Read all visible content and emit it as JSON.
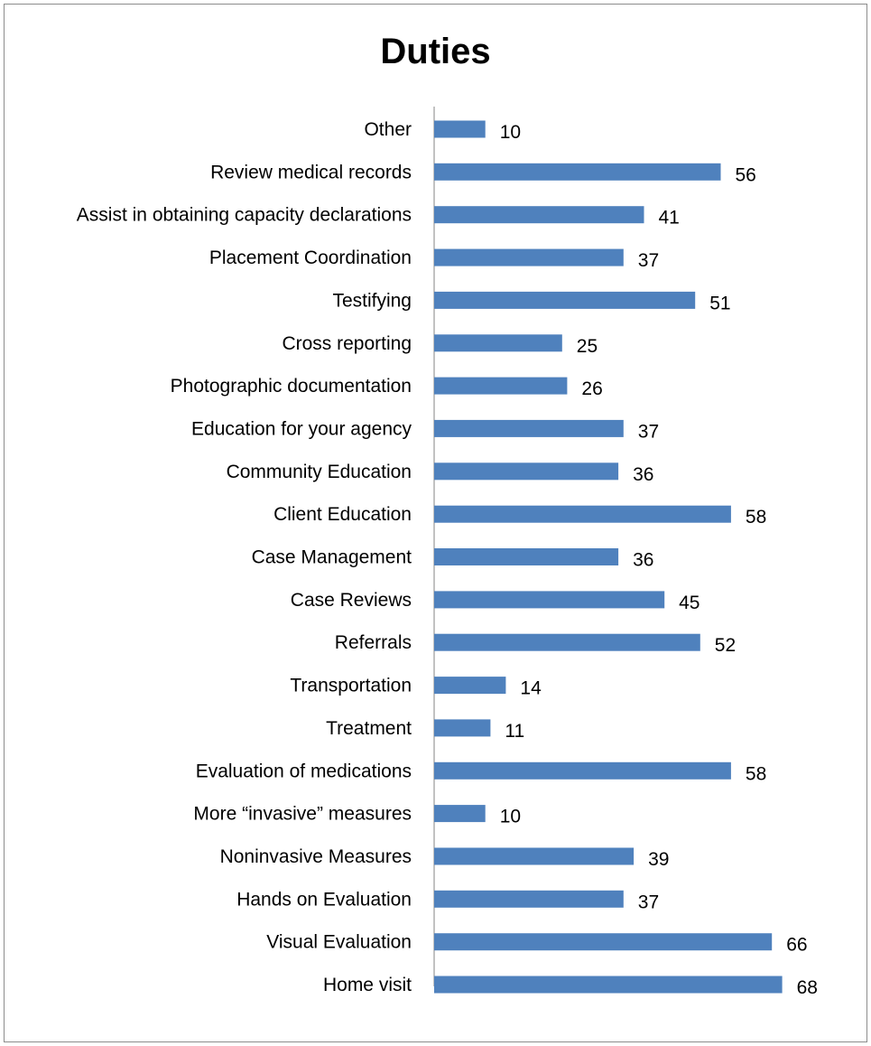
{
  "chart_data": {
    "type": "bar",
    "orientation": "horizontal",
    "title": "Duties",
    "xlabel": "",
    "ylabel": "",
    "grid": false,
    "legend": "none",
    "xlim": [
      0,
      72
    ],
    "bar_color": "#4F81BD",
    "categories": [
      "Other",
      "Review medical records",
      "Assist in obtaining capacity declarations",
      "Placement Coordination",
      "Testifying",
      "Cross reporting",
      "Photographic documentation",
      "Education for your agency",
      "Community Education",
      "Client Education",
      "Case Management",
      "Case Reviews",
      "Referrals",
      "Transportation",
      "Treatment",
      "Evaluation of medications",
      "More “invasive” measures",
      "Noninvasive Measures",
      "Hands on Evaluation",
      "Visual Evaluation",
      "Home visit"
    ],
    "values": [
      10,
      56,
      41,
      37,
      51,
      25,
      26,
      37,
      36,
      58,
      36,
      45,
      52,
      14,
      11,
      58,
      10,
      39,
      37,
      66,
      68
    ]
  }
}
